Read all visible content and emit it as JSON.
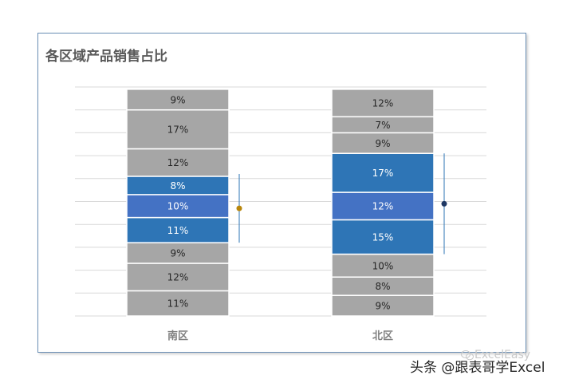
{
  "chart_data": {
    "type": "bar",
    "stacked": true,
    "title": "各区域产品销售占比",
    "xlabel": "",
    "ylabel": "",
    "ylim": [
      0,
      100
    ],
    "grid": true,
    "categories": [
      "南区",
      "北区"
    ],
    "stacks": [
      {
        "category": "南区",
        "segments": [
          {
            "value": 11,
            "label": "11%",
            "color": "#a6a6a6"
          },
          {
            "value": 12,
            "label": "12%",
            "color": "#a6a6a6"
          },
          {
            "value": 9,
            "label": "9%",
            "color": "#a6a6a6"
          },
          {
            "value": 11,
            "label": "11%",
            "color": "#2e75b6"
          },
          {
            "value": 10,
            "label": "10%",
            "color": "#4472c4"
          },
          {
            "value": 8,
            "label": "8%",
            "color": "#2e75b6"
          },
          {
            "value": 12,
            "label": "12%",
            "color": "#a6a6a6"
          },
          {
            "value": 17,
            "label": "17%",
            "color": "#a6a6a6"
          },
          {
            "value": 9,
            "label": "9%",
            "color": "#a6a6a6"
          }
        ],
        "marker": {
          "value": 47,
          "low": 32,
          "high": 62,
          "color": "#b8860b"
        }
      },
      {
        "category": "北区",
        "segments": [
          {
            "value": 9,
            "label": "9%",
            "color": "#a6a6a6"
          },
          {
            "value": 8,
            "label": "8%",
            "color": "#a6a6a6"
          },
          {
            "value": 10,
            "label": "10%",
            "color": "#a6a6a6"
          },
          {
            "value": 15,
            "label": "15%",
            "color": "#2e75b6"
          },
          {
            "value": 12,
            "label": "12%",
            "color": "#4472c4"
          },
          {
            "value": 17,
            "label": "17%",
            "color": "#2e75b6"
          },
          {
            "value": 9,
            "label": "9%",
            "color": "#a6a6a6"
          },
          {
            "value": 7,
            "label": "7%",
            "color": "#a6a6a6"
          },
          {
            "value": 12,
            "label": "12%",
            "color": "#a6a6a6"
          }
        ],
        "marker": {
          "value": 49,
          "low": 27,
          "high": 71,
          "color": "#1f3864"
        }
      }
    ]
  },
  "watermark": {
    "faint": "ExcelEasy",
    "main": "头条 @跟表哥学Excel"
  },
  "colors": {
    "gray_segment": "#a6a6a6",
    "blue_segment": "#2e75b6",
    "mid_blue_segment": "#4472c4",
    "gridline": "#d9d9d9",
    "label_dark": "#262626",
    "label_light": "#ffffff",
    "axis_label": "#7f7f7f"
  }
}
